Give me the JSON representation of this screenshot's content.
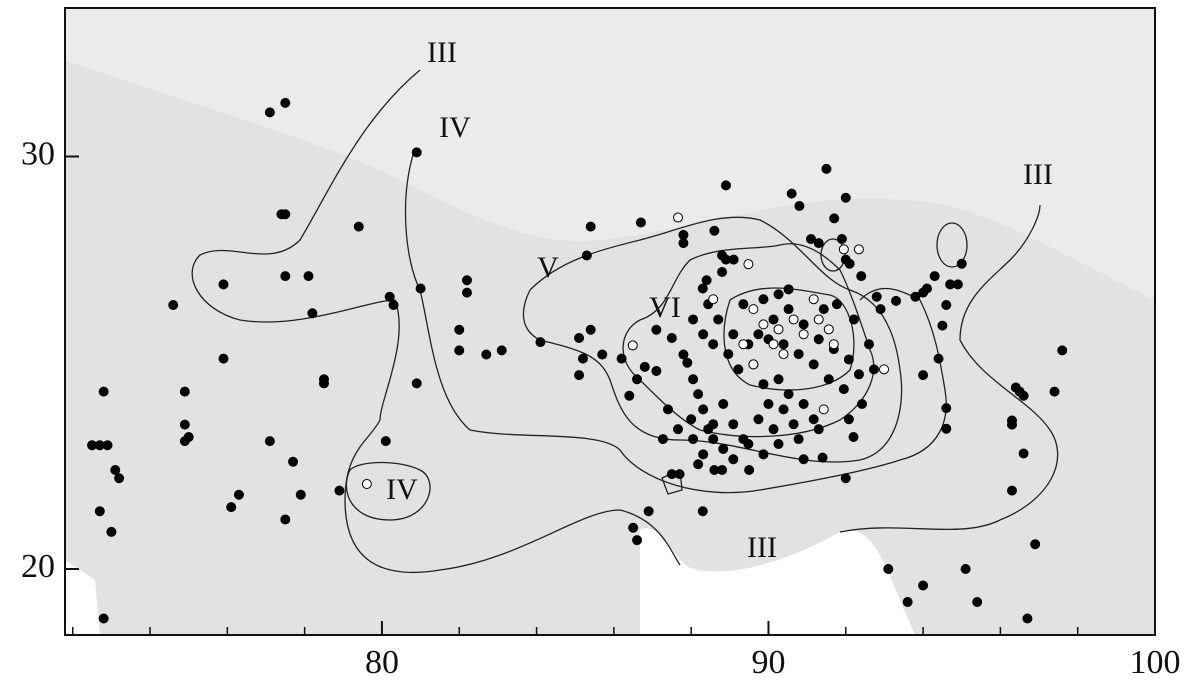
{
  "chart_data": {
    "type": "scatter",
    "xlim": [
      71.8,
      100
    ],
    "ylim": [
      18.4,
      33.6
    ],
    "xticks": [
      80,
      90,
      100
    ],
    "yticks": [
      20,
      30
    ],
    "xminor_ticks": [
      72,
      74,
      76,
      78,
      82,
      84,
      86,
      88,
      92,
      94,
      96,
      98
    ],
    "zone_labels": [
      "III",
      "IV",
      "V",
      "VI",
      "IV",
      "III",
      "III"
    ],
    "series": [
      {
        "color": "#000000",
        "x": [
          77.1,
          77.5,
          80.9,
          77.4,
          77.5,
          79.4,
          75.9,
          77.5,
          78.1,
          74.6,
          78.2,
          80.2,
          80.3,
          81.0,
          82.2,
          82.2,
          75.9,
          74.9,
          78.5,
          78.5,
          80.9,
          72.8,
          82.0,
          82.0,
          82.7,
          83.1,
          84.1,
          74.9,
          75.0,
          74.9,
          72.5,
          72.7,
          72.9,
          73.1,
          73.2,
          77.1,
          77.7,
          80.1,
          72.7,
          73.0,
          76.3,
          76.1,
          77.9,
          77.5,
          78.9,
          72.8,
          85.4,
          85.3,
          86.7,
          87.8,
          87.8,
          88.6,
          88.9,
          90.6,
          90.8,
          91.5,
          92.0,
          91.7,
          91.1,
          91.3,
          91.9,
          92.0,
          92.1,
          95.0,
          94.3,
          94.1,
          94.0,
          93.8,
          92.8,
          92.9,
          92.4,
          93.3,
          88.9,
          88.8,
          88.4,
          88.3,
          88.8,
          89.1,
          94.5,
          94.6,
          94.7,
          94.9,
          94.0,
          94.4,
          94.6,
          94.6,
          97.6,
          97.4,
          96.4,
          96.5,
          96.6,
          96.3,
          96.3,
          96.6,
          96.3,
          96.9,
          93.1,
          94.0,
          93.6,
          95.1,
          95.4,
          96.7,
          86.5,
          86.6,
          86.9,
          88.3,
          87.5,
          87.7,
          88.6,
          88.8,
          89.5,
          91.4,
          92.0,
          92.2,
          85.1,
          85.2,
          85.1,
          85.4,
          85.7,
          86.2,
          86.4,
          86.6,
          86.8,
          87.1,
          87.1,
          87.5,
          87.8,
          87.9,
          88.05,
          88.18,
          88.31,
          88.0,
          88.44,
          88.57,
          88.05,
          87.66,
          87.4,
          87.27,
          88.83,
          89.09,
          89.35,
          89.48,
          89.74,
          90.0,
          90.13,
          90.39,
          90.65,
          90.91,
          91.17,
          91.3,
          90.78,
          90.52,
          90.26,
          89.87,
          89.61,
          89.22,
          88.96,
          88.57,
          88.31,
          88.05,
          88.44,
          88.7,
          89.09,
          89.48,
          89.74,
          90.13,
          90.52,
          90.91,
          91.3,
          91.69,
          92.08,
          92.34,
          91.95,
          91.56,
          91.17,
          90.78,
          90.39,
          90.0,
          89.35,
          89.87,
          90.26,
          90.52,
          91.43,
          91.77,
          92.21,
          92.6,
          92.73,
          92.42,
          92.08,
          88.83,
          89.09,
          88.31,
          88.18,
          88.57,
          89.87,
          90.26,
          90.91
        ],
        "y": [
          31.07,
          31.3,
          30.1,
          28.6,
          28.6,
          28.3,
          26.9,
          27.1,
          27.1,
          26.4,
          26.2,
          26.6,
          26.4,
          26.8,
          27.0,
          26.7,
          25.1,
          24.3,
          24.6,
          24.5,
          24.5,
          24.3,
          25.8,
          25.3,
          25.2,
          25.3,
          25.5,
          23.5,
          23.2,
          23.1,
          23.0,
          23.0,
          23.0,
          22.4,
          22.2,
          23.1,
          22.6,
          23.1,
          21.4,
          20.9,
          21.8,
          21.5,
          21.8,
          21.2,
          21.9,
          18.8,
          28.3,
          27.6,
          28.4,
          28.1,
          27.9,
          28.2,
          29.3,
          29.1,
          28.8,
          29.7,
          29.0,
          28.5,
          28.0,
          27.9,
          28.0,
          27.5,
          27.4,
          27.4,
          27.1,
          26.8,
          26.7,
          26.6,
          26.6,
          26.3,
          27.1,
          26.5,
          27.5,
          27.2,
          27.0,
          26.8,
          27.6,
          27.5,
          25.9,
          26.4,
          26.9,
          26.9,
          24.7,
          25.1,
          23.9,
          23.4,
          25.3,
          24.3,
          24.4,
          24.3,
          24.2,
          23.6,
          23.5,
          22.8,
          21.9,
          20.6,
          20.0,
          19.6,
          19.2,
          20.0,
          19.2,
          18.8,
          21.0,
          20.7,
          21.4,
          21.4,
          22.3,
          22.3,
          22.4,
          22.4,
          22.4,
          22.7,
          22.2,
          23.2,
          24.7,
          25.1,
          25.6,
          25.8,
          25.2,
          25.1,
          24.2,
          24.6,
          24.9,
          24.8,
          25.8,
          25.6,
          25.2,
          25.0,
          24.6,
          24.24,
          23.87,
          23.63,
          23.39,
          23.15,
          23.15,
          23.39,
          23.87,
          23.15,
          24.0,
          23.51,
          23.15,
          23.03,
          23.63,
          24.0,
          23.39,
          23.87,
          23.51,
          24.0,
          23.63,
          23.39,
          23.15,
          24.24,
          24.6,
          24.48,
          24.96,
          24.84,
          25.21,
          25.45,
          25.69,
          26.05,
          26.42,
          26.05,
          25.69,
          25.45,
          25.69,
          26.05,
          26.3,
          25.93,
          25.57,
          25.33,
          25.08,
          24.72,
          24.36,
          24.6,
          24.96,
          25.21,
          25.45,
          25.57,
          26.42,
          26.54,
          26.66,
          26.78,
          26.3,
          26.42,
          26.05,
          25.45,
          24.84,
          24.0,
          23.63,
          22.91,
          22.66,
          22.78,
          22.54,
          23.51,
          22.78,
          23.03,
          22.66
        ]
      },
      {
        "color": "#ffffff",
        "x": [
          89.48,
          89.61,
          89.87,
          90.26,
          90.65,
          90.91,
          91.3,
          91.56,
          91.69,
          90.39,
          89.61,
          89.35,
          90.13,
          91.17,
          91.95,
          92.34,
          87.66,
          88.57,
          86.49,
          79.61,
          91.43,
          92.99
        ],
        "y": [
          27.39,
          26.3,
          25.93,
          25.81,
          26.05,
          25.69,
          26.05,
          25.81,
          25.45,
          25.21,
          24.96,
          25.45,
          25.45,
          26.54,
          27.75,
          27.75,
          28.52,
          26.54,
          25.42,
          22.06,
          23.87,
          24.84
        ]
      }
    ]
  }
}
